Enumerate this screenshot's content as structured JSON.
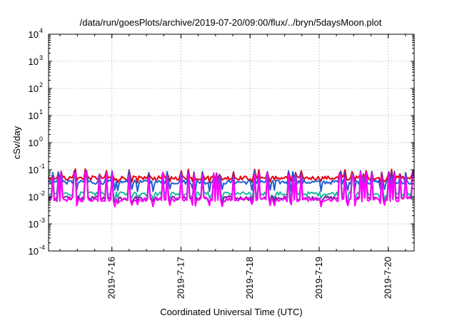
{
  "chart_data": {
    "type": "line",
    "title": "/data/run/goesPlots/archive/2019-07-20/09:00/flux/../bryn/5daysMoon.plot",
    "xlabel": "Coordinated Universal Time (UTC)",
    "ylabel": "cSv/day",
    "yscale": "log",
    "ylim": [
      0.0001,
      10000
    ],
    "xlim": [
      "2019-07-15 02:00",
      "2019-07-20 09:00"
    ],
    "grid": true,
    "legend": "none",
    "y_ticks": [
      {
        "value": 0.0001,
        "base": "10",
        "exp": "-4"
      },
      {
        "value": 0.001,
        "base": "10",
        "exp": "-3"
      },
      {
        "value": 0.01,
        "base": "10",
        "exp": "-2"
      },
      {
        "value": 0.1,
        "base": "10",
        "exp": "-1"
      },
      {
        "value": 1,
        "base": "10",
        "exp": "0"
      },
      {
        "value": 10,
        "base": "10",
        "exp": "1"
      },
      {
        "value": 100,
        "base": "10",
        "exp": "2"
      },
      {
        "value": 1000,
        "base": "10",
        "exp": "3"
      },
      {
        "value": 10000,
        "base": "10",
        "exp": "4"
      }
    ],
    "x_ticks": [
      {
        "date": "2019-07-16 00:00",
        "label": "2019-7-16"
      },
      {
        "date": "2019-07-17 00:00",
        "label": "2019-7-17"
      },
      {
        "date": "2019-07-18 00:00",
        "label": "2019-7-18"
      },
      {
        "date": "2019-07-19 00:00",
        "label": "2019-7-19"
      },
      {
        "date": "2019-07-20 00:00",
        "label": "2019-7-20"
      }
    ],
    "series": [
      {
        "color": "#e8000b",
        "base": 0.05,
        "spike": 0.085,
        "dip": 0.038
      },
      {
        "color": "#1f5fd6",
        "base": 0.035,
        "spike": 0.075,
        "dip": 0.018
      },
      {
        "color": "#22b8a0",
        "base": 0.013,
        "spike": 0.06,
        "dip": 0.008
      },
      {
        "color": "#7a1fa0",
        "base": 0.009,
        "spike": 0.07,
        "dip": 0.006
      },
      {
        "color": "#ff00ff",
        "base": 0.008,
        "spike": 0.065,
        "dip": 0.005
      }
    ]
  }
}
